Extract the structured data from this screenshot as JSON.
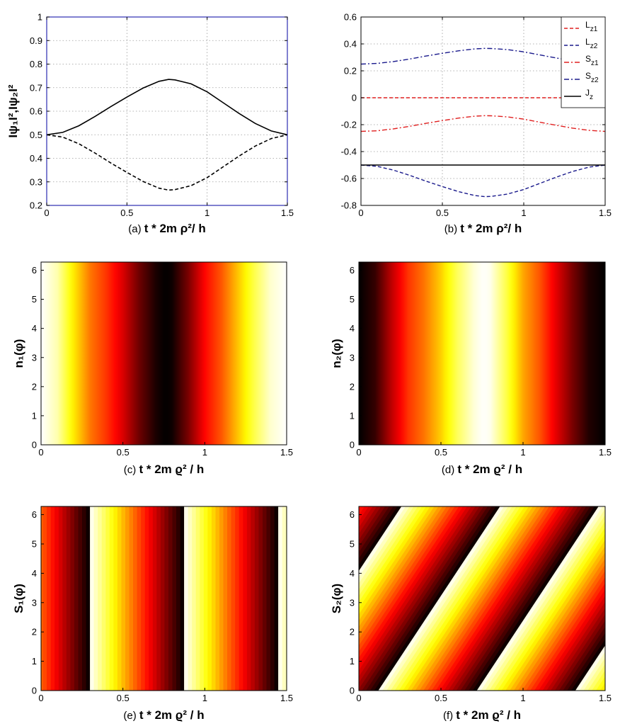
{
  "chart_data": [
    {
      "panel": "(a)",
      "type": "line",
      "xlabel": "t * 2m ρ²/ h",
      "ylabel": "Iψ₁I²,Iψ₂I²",
      "xlim": [
        0,
        1.5
      ],
      "ylim": [
        0.2,
        1
      ],
      "xticks": [
        "0",
        "0.5",
        "1",
        "1.5"
      ],
      "yticks": [
        "0.2",
        "0.3",
        "0.4",
        "0.5",
        "0.6",
        "0.7",
        "0.8",
        "0.9",
        "1"
      ],
      "grid": true,
      "frame_color": "#2b2bb0",
      "x": [
        0,
        0.1,
        0.2,
        0.3,
        0.4,
        0.5,
        0.6,
        0.7,
        0.76,
        0.8,
        0.9,
        1.0,
        1.1,
        1.2,
        1.3,
        1.4,
        1.5
      ],
      "series": [
        {
          "values": [
            0.5,
            0.51,
            0.538,
            0.577,
            0.62,
            0.66,
            0.698,
            0.727,
            0.735,
            0.733,
            0.716,
            0.682,
            0.636,
            0.59,
            0.548,
            0.516,
            0.5
          ],
          "color": "#000000",
          "style": "solid"
        },
        {
          "values": [
            0.5,
            0.49,
            0.462,
            0.423,
            0.38,
            0.34,
            0.302,
            0.273,
            0.265,
            0.267,
            0.284,
            0.318,
            0.364,
            0.41,
            0.452,
            0.484,
            0.5
          ],
          "color": "#000000",
          "style": "dashed"
        }
      ]
    },
    {
      "panel": "(b)",
      "type": "line",
      "xlabel": "t * 2m ρ²/ h",
      "ylabel": "",
      "xlim": [
        0,
        1.5
      ],
      "ylim": [
        -0.8,
        0.6
      ],
      "xticks": [
        "0",
        "0.5",
        "1",
        "1.5"
      ],
      "yticks": [
        "-0.8",
        "-0.6",
        "-0.4",
        "-0.2",
        "0",
        "0.2",
        "0.4",
        "0.6"
      ],
      "grid": true,
      "legend_position": "top-right",
      "x": [
        0,
        0.1,
        0.2,
        0.3,
        0.4,
        0.5,
        0.6,
        0.7,
        0.76,
        0.8,
        0.9,
        1.0,
        1.1,
        1.2,
        1.3,
        1.4,
        1.5
      ],
      "series": [
        {
          "name": "L",
          "sub": "z1",
          "color": "#e02020",
          "style": "dashed",
          "values": [
            0,
            0,
            0,
            0,
            0,
            0,
            0,
            0,
            0,
            0,
            0,
            0,
            0,
            0,
            0,
            0,
            0
          ]
        },
        {
          "name": "L",
          "sub": "z2",
          "color": "#1a1a8c",
          "style": "dashed",
          "values": [
            -0.5,
            -0.51,
            -0.538,
            -0.577,
            -0.62,
            -0.66,
            -0.698,
            -0.727,
            -0.735,
            -0.733,
            -0.716,
            -0.682,
            -0.636,
            -0.59,
            -0.548,
            -0.516,
            -0.5
          ]
        },
        {
          "name": "S",
          "sub": "z1",
          "color": "#e02020",
          "style": "dashdot",
          "values": [
            -0.25,
            -0.245,
            -0.231,
            -0.212,
            -0.19,
            -0.17,
            -0.151,
            -0.137,
            -0.133,
            -0.134,
            -0.142,
            -0.159,
            -0.182,
            -0.205,
            -0.226,
            -0.242,
            -0.25
          ]
        },
        {
          "name": "S",
          "sub": "z2",
          "color": "#1a1a8c",
          "style": "dashdot",
          "values": [
            0.25,
            0.255,
            0.269,
            0.288,
            0.31,
            0.33,
            0.349,
            0.363,
            0.367,
            0.366,
            0.358,
            0.341,
            0.318,
            0.295,
            0.274,
            0.258,
            0.25
          ]
        },
        {
          "name": "J",
          "sub": "z",
          "color": "#000000",
          "style": "solid",
          "values": [
            -0.5,
            -0.5,
            -0.5,
            -0.5,
            -0.5,
            -0.5,
            -0.5,
            -0.5,
            -0.5,
            -0.5,
            -0.5,
            -0.5,
            -0.5,
            -0.5,
            -0.5,
            -0.5,
            -0.5
          ]
        }
      ]
    },
    {
      "panel": "(c)",
      "type": "heatmap",
      "xlabel": "t * 2m ϱ² / h",
      "ylabel": "n₁(φ)",
      "xlim": [
        0,
        1.5
      ],
      "ylim": [
        0,
        6.28
      ],
      "xticks": [
        "0",
        "0.5",
        "1",
        "1.5"
      ],
      "yticks": [
        "0",
        "1",
        "2",
        "3",
        "4",
        "5",
        "6"
      ],
      "pattern": "vertical",
      "profile_x": [
        0,
        0.1,
        0.2,
        0.3,
        0.4,
        0.5,
        0.6,
        0.7,
        0.76,
        0.8,
        0.9,
        1.0,
        1.1,
        1.2,
        1.3,
        1.4,
        1.5
      ],
      "profile_level": [
        1.0,
        0.92,
        0.72,
        0.55,
        0.45,
        0.32,
        0.16,
        0.04,
        0.0,
        0.02,
        0.18,
        0.38,
        0.5,
        0.66,
        0.82,
        0.95,
        1.0
      ]
    },
    {
      "panel": "(d)",
      "type": "heatmap",
      "xlabel": "t * 2m ϱ² / h",
      "ylabel": "n₂(φ)",
      "xlim": [
        0,
        1.5
      ],
      "ylim": [
        0,
        6.28
      ],
      "xticks": [
        "0",
        "0.5",
        "1",
        "1.5"
      ],
      "yticks": [
        "0",
        "1",
        "2",
        "3",
        "4",
        "5",
        "6"
      ],
      "pattern": "vertical",
      "profile_x": [
        0,
        0.1,
        0.2,
        0.3,
        0.4,
        0.5,
        0.6,
        0.7,
        0.76,
        0.8,
        0.9,
        1.0,
        1.1,
        1.2,
        1.3,
        1.4,
        1.5
      ],
      "profile_level": [
        0.0,
        0.08,
        0.28,
        0.45,
        0.55,
        0.68,
        0.84,
        0.96,
        1.0,
        0.98,
        0.82,
        0.62,
        0.5,
        0.34,
        0.18,
        0.05,
        0.0
      ]
    },
    {
      "panel": "(e)",
      "type": "heatmap",
      "xlabel": "t * 2m ϱ² / h",
      "ylabel": "S₁(φ)",
      "xlim": [
        0,
        1.5
      ],
      "ylim": [
        0,
        6.28
      ],
      "xticks": [
        "0",
        "0.5",
        "1",
        "1.5"
      ],
      "yticks": [
        "0",
        "1",
        "2",
        "3",
        "4",
        "5",
        "6"
      ],
      "pattern": "sawtooth-vertical",
      "period": 0.575,
      "phase": 0.3
    },
    {
      "panel": "(f)",
      "type": "heatmap",
      "xlabel": "t * 2m ϱ² / h",
      "ylabel": "S₂(φ)",
      "xlim": [
        0,
        1.5
      ],
      "ylim": [
        0,
        6.28
      ],
      "xticks": [
        "0",
        "0.5",
        "1",
        "1.5"
      ],
      "yticks": [
        "0",
        "1",
        "2",
        "3",
        "4",
        "5",
        "6"
      ],
      "pattern": "sawtooth-diagonal",
      "period": 0.6,
      "phase": 0.12,
      "slope": 0.118
    }
  ]
}
